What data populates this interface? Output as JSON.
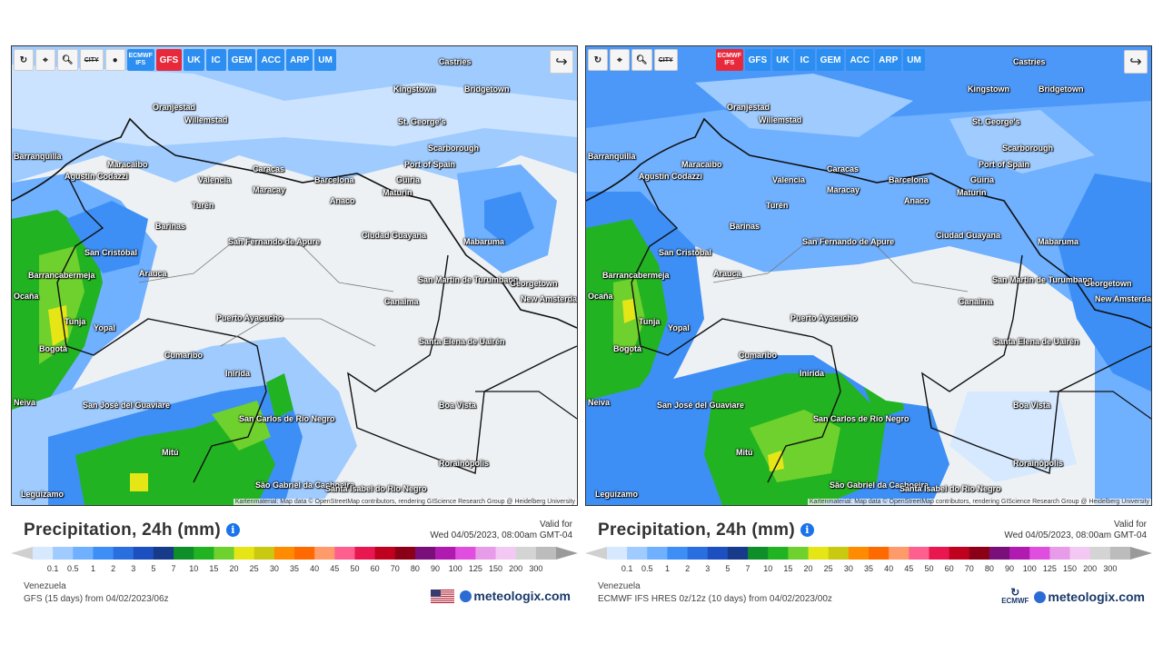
{
  "toolbar_common": {
    "city_label": "CITY",
    "models": [
      "GFS",
      "UK",
      "IC",
      "GEM",
      "ACC",
      "ARP",
      "UM"
    ],
    "ecmwf_label": "ECMWF IFS"
  },
  "left": {
    "active_model": "GFS",
    "title": "Precipitation, 24h (mm)",
    "valid_label": "Valid for",
    "valid_time": "Wed 04/05/2023, 08:00am GMT-04",
    "region": "Venezuela",
    "model_run": "GFS (15 days) from 04/02/2023/06z",
    "brand": "meteologix.com",
    "flag_icon": "us-flag-icon"
  },
  "right": {
    "active_model": "ECMWF IFS",
    "title": "Precipitation, 24h (mm)",
    "valid_label": "Valid for",
    "valid_time": "Wed 04/05/2023, 08:00am GMT-04",
    "region": "Venezuela",
    "model_run": "ECMWF IFS HRES 0z/12z (10 days) from 04/02/2023/00z",
    "brand": "meteologix.com",
    "ecmwf_logo": "ECMWF"
  },
  "attribution": "Kartenmaterial: Map data © OpenStreetMap contributors, rendering GIScience Research Group @ Heidelberg University",
  "legend": {
    "ticks": [
      "0.1",
      "0.5",
      "1",
      "2",
      "3",
      "5",
      "7",
      "10",
      "15",
      "20",
      "25",
      "30",
      "35",
      "40",
      "45",
      "50",
      "60",
      "70",
      "80",
      "90",
      "100",
      "125",
      "150",
      "200",
      "300"
    ],
    "colors": [
      "#d6e9ff",
      "#9fcbff",
      "#6fb0ff",
      "#3d8ff5",
      "#2a6fe0",
      "#1c4fbf",
      "#173a8a",
      "#0f8f2a",
      "#22b322",
      "#6ed12d",
      "#e6e617",
      "#c9c90f",
      "#ff8c00",
      "#ff6a00",
      "#ff9a6a",
      "#ff5f8f",
      "#e8174f",
      "#c0001f",
      "#8b0016",
      "#7a0f7a",
      "#b01ab0",
      "#e04ee0",
      "#e89be8",
      "#f3c9f3",
      "#d4d4d4",
      "#bcbcbc"
    ]
  },
  "cities": [
    {
      "name": "Castries"
    },
    {
      "name": "Kingstown"
    },
    {
      "name": "Bridgetown"
    },
    {
      "name": "Oranjestad"
    },
    {
      "name": "Willemstad"
    },
    {
      "name": "St. George's"
    },
    {
      "name": "Scarborough"
    },
    {
      "name": "Port of Spain"
    },
    {
      "name": "Barranquilla"
    },
    {
      "name": "Maracaibo"
    },
    {
      "name": "Caracas"
    },
    {
      "name": "Barcelona"
    },
    {
      "name": "Valencia"
    },
    {
      "name": "Maracay"
    },
    {
      "name": "Güiria"
    },
    {
      "name": "Maturín"
    },
    {
      "name": "Agustín Codazzi"
    },
    {
      "name": "Anaco"
    },
    {
      "name": "Turén"
    },
    {
      "name": "Barinas"
    },
    {
      "name": "Ciudad Guayana"
    },
    {
      "name": "Mabaruma"
    },
    {
      "name": "San Cristóbal"
    },
    {
      "name": "San Fernando de Apure"
    },
    {
      "name": "Arauca"
    },
    {
      "name": "Barrancabermeja"
    },
    {
      "name": "San Martín de Turumbang"
    },
    {
      "name": "Georgetown"
    },
    {
      "name": "New Amsterdam"
    },
    {
      "name": "Canaima"
    },
    {
      "name": "Tunja"
    },
    {
      "name": "Yopal"
    },
    {
      "name": "Puerto Ayacucho"
    },
    {
      "name": "Bogotá"
    },
    {
      "name": "Santa Elena de Uairén"
    },
    {
      "name": "Cumaribo"
    },
    {
      "name": "Inírida"
    },
    {
      "name": "San José del Guaviare"
    },
    {
      "name": "San Carlos de Río Negro"
    },
    {
      "name": "Boa Vista"
    },
    {
      "name": "Mitú"
    },
    {
      "name": "Rorainópolis"
    },
    {
      "name": "São Gabriel da Cachoeira"
    },
    {
      "name": "Santa Isabel do Rio Negro"
    },
    {
      "name": "Leguízamo"
    },
    {
      "name": "Neiva"
    },
    {
      "name": "Ocaña"
    }
  ]
}
